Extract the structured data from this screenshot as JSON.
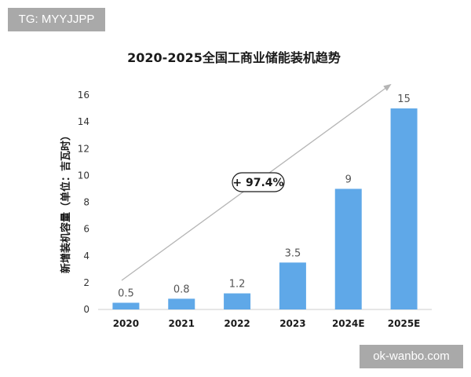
{
  "badges": {
    "tag": "TG: MYYJJPP",
    "site": "ok-wanbo.com"
  },
  "colors": {
    "bar": "#5fa8e8",
    "trend": "#b5b5b5",
    "badge": "#a9a9a9"
  },
  "chart_data": {
    "type": "bar",
    "title": "2020-2025全国工商业储能装机趋势",
    "xlabel": "",
    "ylabel": "新增装机容量（单位：吉瓦时）",
    "categories": [
      "2020",
      "2021",
      "2022",
      "2023",
      "2024E",
      "2025E"
    ],
    "values": [
      0.5,
      0.8,
      1.2,
      3.5,
      9,
      15
    ],
    "data_labels": [
      "0.5",
      "0.8",
      "1.2",
      "3.5",
      "9",
      "15"
    ],
    "yticks": [
      "0",
      "2",
      "4",
      "6",
      "8",
      "10",
      "12",
      "14",
      "16"
    ],
    "ylim": [
      0,
      16
    ],
    "grid": false,
    "annotation": "+ 97.4%"
  }
}
